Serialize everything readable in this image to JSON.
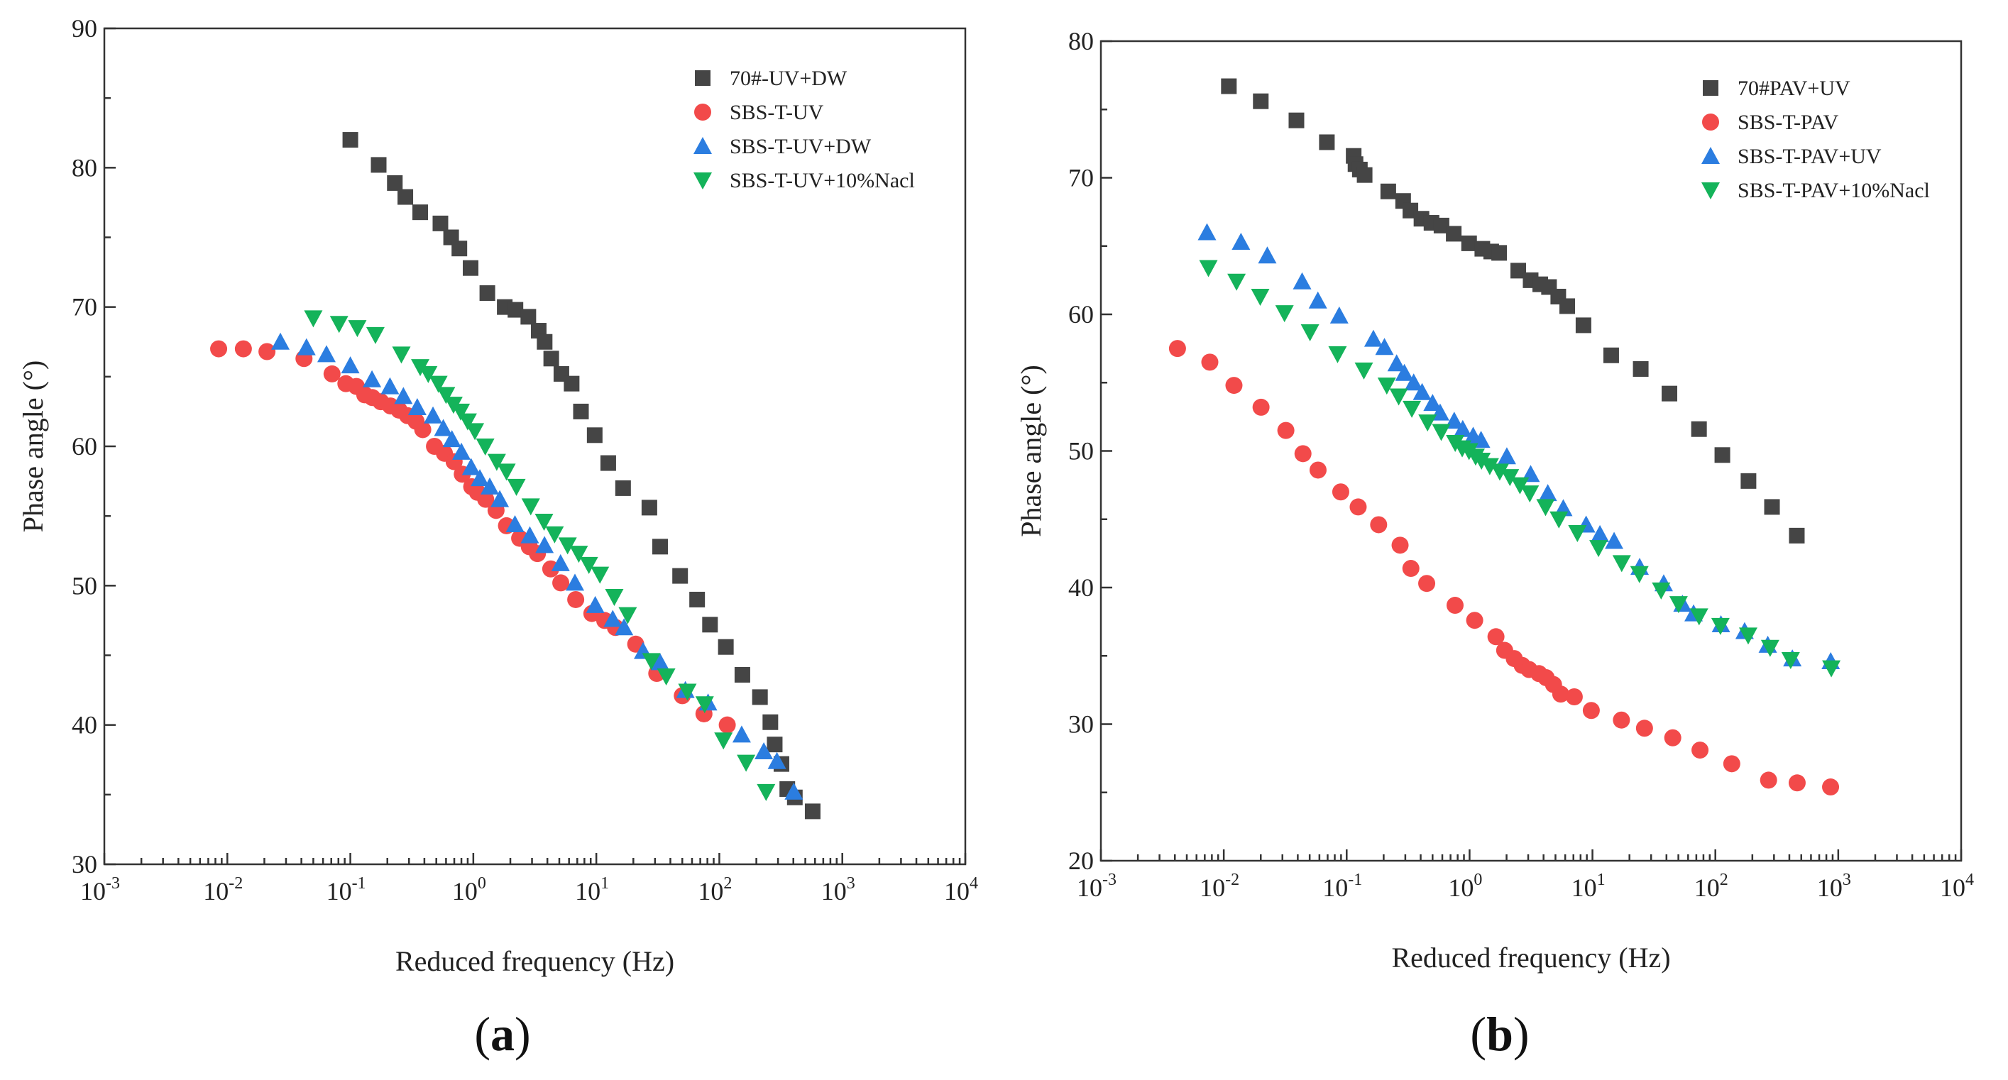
{
  "colors": {
    "series_0": "#454545",
    "series_1": "#f24a4a",
    "series_2": "#2b7de0",
    "series_3": "#14b35a"
  },
  "panels": [
    {
      "label_open": "(",
      "label_letter": "a",
      "label_close": ")"
    },
    {
      "label_open": "(",
      "label_letter": "b",
      "label_close": ")"
    }
  ],
  "chart_data": [
    {
      "type": "scatter",
      "xscale": "log",
      "xlabel": "Reduced frequency (Hz)",
      "ylabel": "Phase angle (°)",
      "xlim": [
        0.001,
        10000
      ],
      "ylim": [
        30,
        90
      ],
      "yticks": [
        "30",
        "40",
        "50",
        "60",
        "70",
        "80",
        "90"
      ],
      "xticks": [
        {
          "base": "10",
          "exp": "-3"
        },
        {
          "base": "10",
          "exp": "-2"
        },
        {
          "base": "10",
          "exp": "-1"
        },
        {
          "base": "10",
          "exp": "0"
        },
        {
          "base": "10",
          "exp": "1"
        },
        {
          "base": "10",
          "exp": "2"
        },
        {
          "base": "10",
          "exp": "3"
        },
        {
          "base": "10",
          "exp": "4"
        }
      ],
      "legend_position": "top-right",
      "series": [
        {
          "name": "70#-UV+DW",
          "marker": "square",
          "x": [
            0.1,
            0.17,
            0.23,
            0.28,
            0.37,
            0.54,
            0.66,
            0.77,
            0.95,
            1.3,
            1.8,
            2.2,
            2.8,
            3.4,
            3.8,
            4.3,
            5.2,
            6.3,
            7.5,
            9.7,
            12.5,
            16.5,
            27,
            33,
            48,
            66,
            84,
            113,
            154,
            214,
            260,
            282,
            320,
            357,
            411,
            574
          ],
          "y": [
            82,
            80.2,
            78.9,
            77.9,
            76.8,
            76,
            75,
            74.2,
            72.8,
            71,
            70,
            69.8,
            69.3,
            68.3,
            67.5,
            66.3,
            65.2,
            64.5,
            62.5,
            60.8,
            58.8,
            57,
            55.6,
            52.8,
            50.7,
            49,
            47.2,
            45.6,
            43.6,
            42,
            40.2,
            38.6,
            37.2,
            35.4,
            34.8,
            33.8
          ]
        },
        {
          "name": "SBS-T-UV",
          "marker": "circle",
          "x": [
            0.0085,
            0.0135,
            0.021,
            0.042,
            0.071,
            0.092,
            0.112,
            0.131,
            0.151,
            0.177,
            0.212,
            0.249,
            0.292,
            0.342,
            0.388,
            0.483,
            0.582,
            0.698,
            0.813,
            0.97,
            1.08,
            1.26,
            1.53,
            1.86,
            2.38,
            2.85,
            3.32,
            4.26,
            5.14,
            6.8,
            9.2,
            11.7,
            14.3,
            20.9,
            31,
            50,
            75,
            116
          ],
          "y": [
            67,
            67,
            66.8,
            66.3,
            65.2,
            64.5,
            64.3,
            63.7,
            63.5,
            63.2,
            62.9,
            62.6,
            62.2,
            61.8,
            61.2,
            60,
            59.5,
            58.9,
            58,
            57.1,
            56.7,
            56.2,
            55.4,
            54.3,
            53.4,
            52.8,
            52.3,
            51.2,
            50.2,
            49,
            48,
            47.5,
            47,
            45.8,
            43.7,
            42.1,
            40.8,
            40
          ]
        },
        {
          "name": "SBS-T-UV+DW",
          "marker": "triangle-up",
          "x": [
            0.027,
            0.044,
            0.064,
            0.1,
            0.15,
            0.21,
            0.27,
            0.35,
            0.47,
            0.57,
            0.67,
            0.8,
            0.96,
            1.13,
            1.36,
            1.64,
            2.18,
            2.88,
            3.79,
            5.12,
            6.7,
            9.8,
            13.6,
            16.8,
            24,
            33,
            53,
            81,
            152,
            230,
            294,
            403
          ],
          "y": [
            67.5,
            67.1,
            66.6,
            65.8,
            64.8,
            64.3,
            63.6,
            62.8,
            62.2,
            61.3,
            60.5,
            59.6,
            58.5,
            57.7,
            57.1,
            56.2,
            54.4,
            53.6,
            52.9,
            51.6,
            50.2,
            48.6,
            47.6,
            47,
            45.3,
            44.5,
            42.5,
            41.6,
            39.3,
            38.1,
            37.4,
            35.2
          ]
        },
        {
          "name": "SBS-T-UV+10%Nacl",
          "marker": "triangle-down",
          "x": [
            0.05,
            0.081,
            0.114,
            0.16,
            0.26,
            0.37,
            0.43,
            0.52,
            0.6,
            0.69,
            0.79,
            0.9,
            1.03,
            1.25,
            1.55,
            1.86,
            2.24,
            2.93,
            3.76,
            4.58,
            5.84,
            7.2,
            8.7,
            10.7,
            14,
            18,
            28,
            37,
            55,
            76,
            108,
            165,
            240
          ],
          "y": [
            69.2,
            68.8,
            68.5,
            68,
            66.6,
            65.7,
            65.2,
            64.5,
            63.7,
            63,
            62.5,
            61.8,
            61.1,
            60,
            58.9,
            58.2,
            57.1,
            55.7,
            54.6,
            53.7,
            52.9,
            52.3,
            51.5,
            50.8,
            49.2,
            47.9,
            44.6,
            43.5,
            42.4,
            41.5,
            38.9,
            37.3,
            35.2
          ]
        }
      ]
    },
    {
      "type": "scatter",
      "xscale": "log",
      "xlabel": "Reduced frequency (Hz)",
      "ylabel": "Phase angle (°)",
      "xlim": [
        0.001,
        10000
      ],
      "ylim": [
        20,
        80
      ],
      "yticks": [
        "20",
        "30",
        "40",
        "50",
        "60",
        "70",
        "80"
      ],
      "xticks": [
        {
          "base": "10",
          "exp": "-3"
        },
        {
          "base": "10",
          "exp": "-2"
        },
        {
          "base": "10",
          "exp": "-1"
        },
        {
          "base": "10",
          "exp": "0"
        },
        {
          "base": "10",
          "exp": "1"
        },
        {
          "base": "10",
          "exp": "2"
        },
        {
          "base": "10",
          "exp": "3"
        },
        {
          "base": "10",
          "exp": "4"
        }
      ],
      "legend_position": "top-right",
      "series": [
        {
          "name": "70#PAV+UV",
          "marker": "square",
          "x": [
            0.011,
            0.02,
            0.039,
            0.069,
            0.114,
            0.118,
            0.128,
            0.14,
            0.218,
            0.288,
            0.33,
            0.406,
            0.49,
            0.591,
            0.743,
            0.991,
            1.27,
            1.5,
            1.74,
            2.49,
            3.14,
            3.76,
            4.43,
            5.27,
            6.23,
            8.45,
            14.2,
            24.7,
            42.3,
            73.6,
            114,
            186,
            289,
            460
          ],
          "y": [
            76.7,
            75.6,
            74.2,
            72.6,
            71.6,
            71,
            70.6,
            70.2,
            69,
            68.3,
            67.6,
            67,
            66.7,
            66.5,
            65.9,
            65.2,
            64.8,
            64.6,
            64.5,
            63.2,
            62.5,
            62.2,
            62,
            61.3,
            60.6,
            59.2,
            57,
            56,
            54.2,
            51.6,
            49.7,
            47.8,
            45.9,
            43.8
          ]
        },
        {
          "name": "SBS-T-PAV",
          "marker": "circle",
          "x": [
            0.0042,
            0.0077,
            0.0121,
            0.0201,
            0.032,
            0.0441,
            0.0585,
            0.0895,
            0.124,
            0.182,
            0.272,
            0.333,
            0.448,
            0.762,
            1.1,
            1.64,
            1.93,
            2.31,
            2.68,
            3.05,
            3.67,
            4.2,
            4.82,
            5.52,
            7.11,
            9.78,
            17.2,
            26.5,
            45,
            75,
            136,
            271,
            463,
            866
          ],
          "y": [
            57.5,
            56.5,
            54.8,
            53.2,
            51.5,
            49.8,
            48.6,
            47,
            45.9,
            44.6,
            43.1,
            41.4,
            40.3,
            38.7,
            37.6,
            36.4,
            35.4,
            34.8,
            34.3,
            34,
            33.7,
            33.4,
            32.9,
            32.2,
            32,
            31,
            30.3,
            29.7,
            29,
            28.1,
            27.1,
            25.9,
            25.7,
            25.4
          ]
        },
        {
          "name": "SBS-T-PAV+UV",
          "marker": "triangle-up",
          "x": [
            0.0073,
            0.0138,
            0.0226,
            0.0434,
            0.0583,
            0.087,
            0.165,
            0.203,
            0.255,
            0.295,
            0.351,
            0.411,
            0.5,
            0.576,
            0.75,
            0.88,
            1.07,
            1.24,
            2.01,
            3.14,
            4.33,
            5.79,
            8.88,
            11.5,
            15,
            24.2,
            38,
            54,
            66.5,
            111,
            173,
            267,
            423,
            868
          ],
          "y": [
            66,
            65.3,
            64.3,
            62.4,
            61,
            59.9,
            58.2,
            57.6,
            56.4,
            55.7,
            55,
            54.3,
            53.5,
            52.8,
            52.2,
            51.6,
            51.1,
            50.8,
            49.6,
            48.3,
            46.9,
            45.8,
            44.6,
            43.9,
            43.4,
            41.5,
            40.3,
            38.8,
            38.1,
            37.3,
            36.8,
            35.8,
            34.8,
            34.6
          ]
        },
        {
          "name": "SBS-T-PAV+10%Nacl",
          "marker": "triangle-down",
          "x": [
            0.0075,
            0.0127,
            0.0198,
            0.0312,
            0.0503,
            0.0843,
            0.138,
            0.212,
            0.265,
            0.339,
            0.455,
            0.588,
            0.764,
            0.871,
            0.99,
            1.12,
            1.25,
            1.46,
            1.76,
            2.13,
            2.57,
            3.09,
            4.15,
            5.33,
            7.54,
            11.2,
            17.3,
            24.1,
            36.2,
            50.2,
            73.7,
            110,
            185,
            279,
            410,
            878
          ],
          "y": [
            63.4,
            62.4,
            61.3,
            60.1,
            58.7,
            57.1,
            55.9,
            54.8,
            54,
            53.1,
            52.1,
            51.4,
            50.6,
            50.2,
            50,
            49.6,
            49.3,
            48.9,
            48.5,
            48.1,
            47.5,
            46.9,
            45.9,
            45,
            44,
            42.9,
            41.8,
            41,
            39.8,
            38.8,
            37.9,
            37.2,
            36.5,
            35.6,
            34.7,
            34.1
          ]
        }
      ]
    }
  ]
}
